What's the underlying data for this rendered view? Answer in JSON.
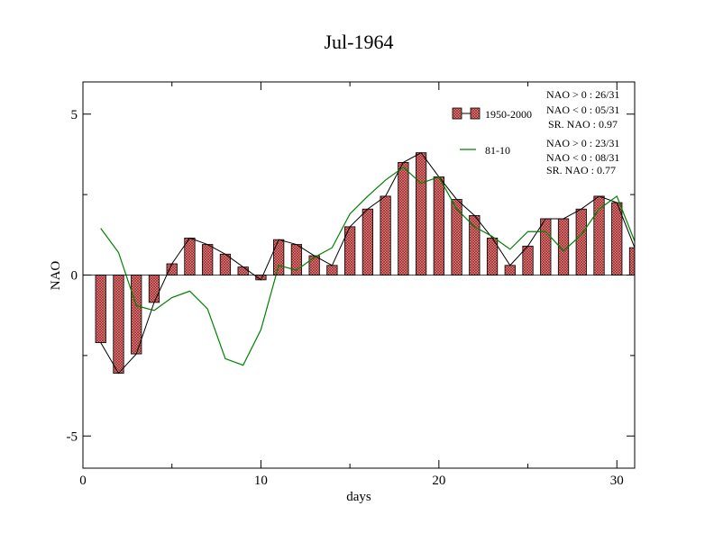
{
  "chart_data": {
    "type": "bar",
    "title": "Jul-1964",
    "xlabel": "days",
    "ylabel": "NAO",
    "xlim": [
      0,
      31
    ],
    "ylim": [
      -6,
      6
    ],
    "xticks": [
      0,
      10,
      20,
      30
    ],
    "yticks": [
      -5,
      0,
      5
    ],
    "x": [
      1,
      2,
      3,
      4,
      5,
      6,
      7,
      8,
      9,
      10,
      11,
      12,
      13,
      14,
      15,
      16,
      17,
      18,
      19,
      20,
      21,
      22,
      23,
      24,
      25,
      26,
      27,
      28,
      29,
      30,
      31
    ],
    "series": [
      {
        "name": "1950-2000",
        "kind": "bar+line",
        "color": "#e06060",
        "values": [
          -2.1,
          -3.05,
          -2.45,
          -0.85,
          0.35,
          1.15,
          0.95,
          0.65,
          0.25,
          -0.15,
          1.1,
          0.95,
          0.6,
          0.3,
          1.5,
          2.05,
          2.45,
          3.5,
          3.8,
          3.05,
          2.35,
          1.85,
          1.15,
          0.3,
          0.9,
          1.75,
          1.75,
          2.05,
          2.45,
          2.25,
          0.85
        ]
      },
      {
        "name": "81-10",
        "kind": "line",
        "color": "#008000",
        "values": [
          1.45,
          0.7,
          -0.95,
          -1.1,
          -0.7,
          -0.5,
          -1.05,
          -2.6,
          -2.8,
          -1.7,
          0.3,
          0.15,
          0.55,
          0.85,
          1.9,
          2.45,
          2.95,
          3.35,
          2.85,
          3.05,
          2.05,
          1.5,
          1.2,
          0.8,
          1.35,
          1.35,
          0.75,
          1.25,
          2.05,
          2.45,
          1.05
        ]
      }
    ],
    "legend": {
      "position": "top-right",
      "entries": [
        "1950-2000",
        "81-10"
      ]
    },
    "stats": {
      "s1": [
        "NAO > 0 : 26/31",
        "NAO < 0 : 05/31",
        "SR. NAO :  0.97"
      ],
      "s2": [
        "NAO > 0 : 23/31",
        "NAO < 0 : 08/31",
        "SR. NAO :  0.77"
      ]
    }
  }
}
